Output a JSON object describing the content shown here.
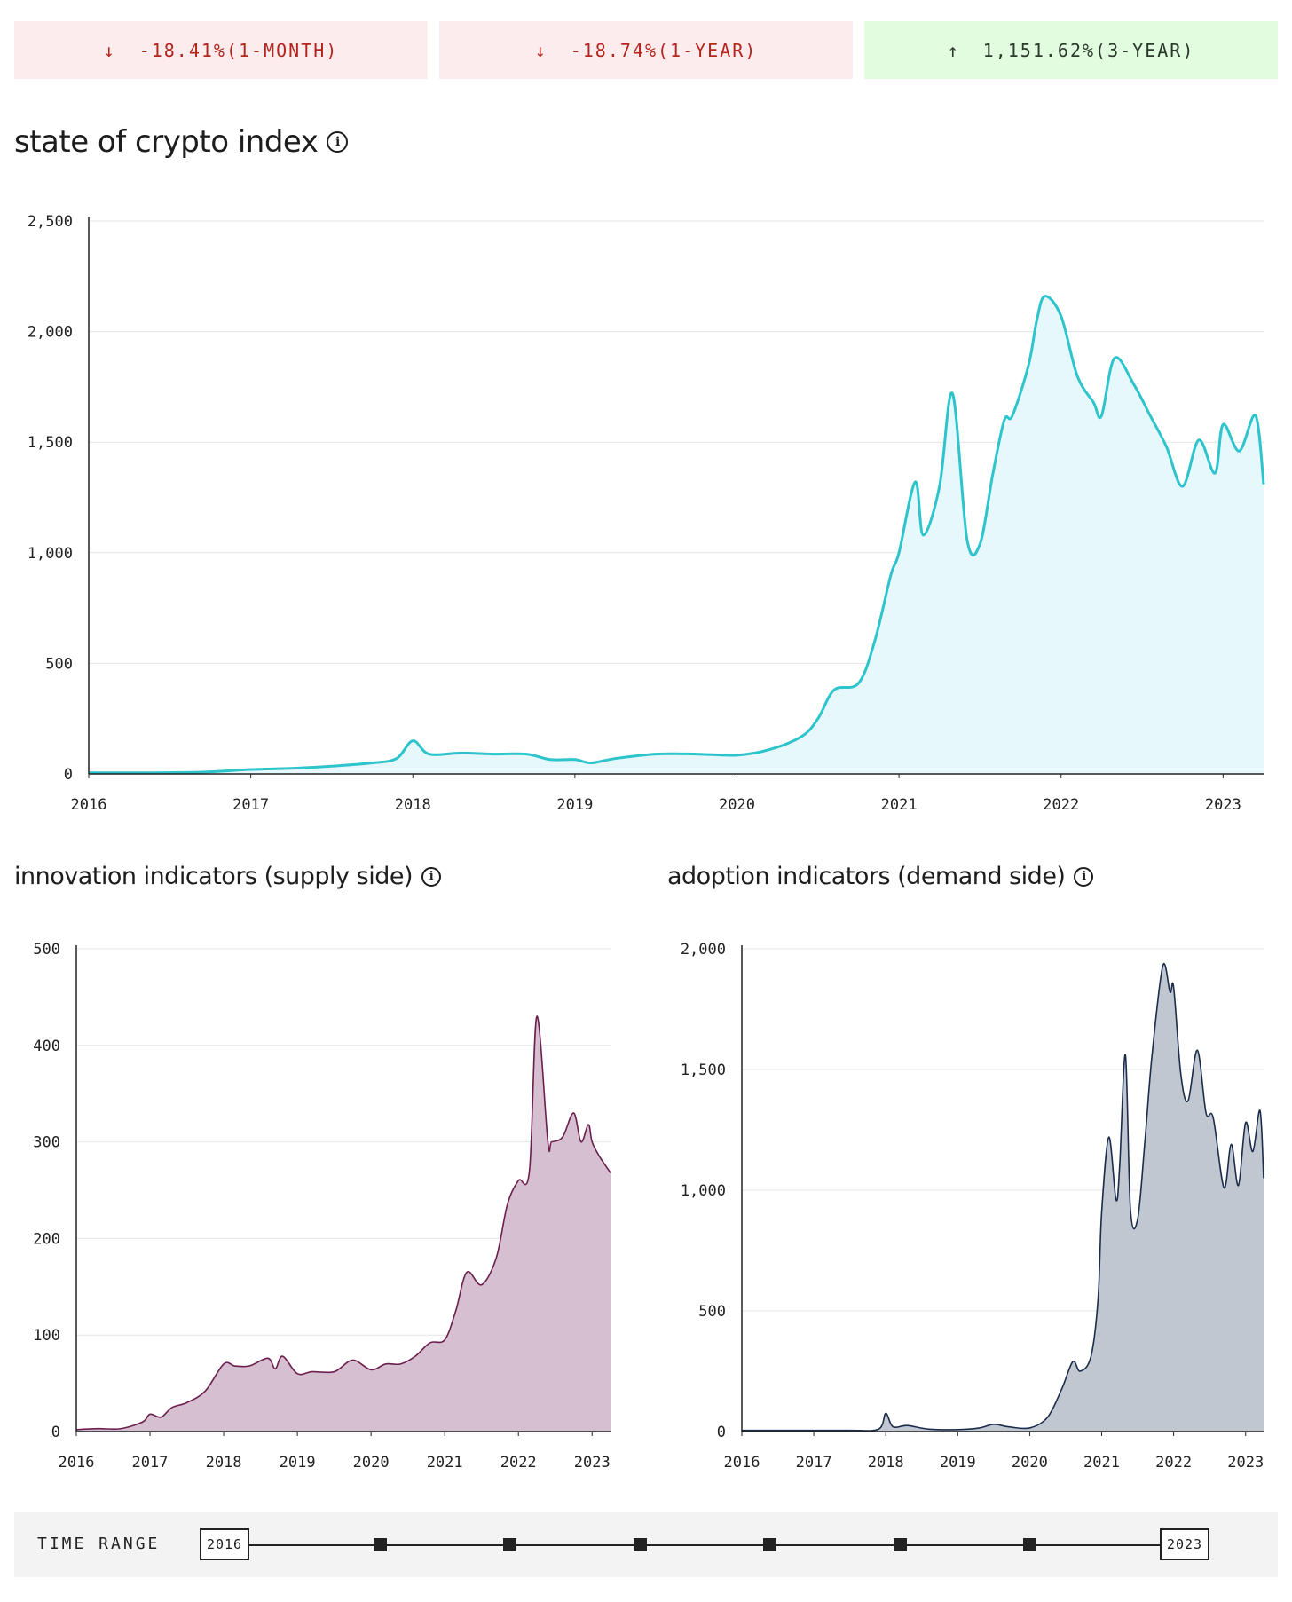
{
  "stats": [
    {
      "arrow": "↓",
      "text": "-18.41%(1-MONTH)",
      "tone": "negative"
    },
    {
      "arrow": "↓",
      "text": "-18.74%(1-YEAR)",
      "tone": "negative"
    },
    {
      "arrow": "↑",
      "text": "1,151.62%(3-YEAR)",
      "tone": "positive"
    }
  ],
  "sections": {
    "main_title": "state of crypto index",
    "supply_title": "innovation indicators (supply side)",
    "demand_title": "adoption indicators (demand side)"
  },
  "info_glyph": "i",
  "colors": {
    "index_line": "#2ec4cc",
    "index_fill": "#e6f8fb",
    "supply_line": "#6b1f4e",
    "supply_fill": "#d6bfd0",
    "demand_line": "#1c2c4c",
    "demand_fill": "#c1c7d1",
    "negative": "#b3261e",
    "positive": "#2b3a2b"
  },
  "time_range": {
    "label": "TIME RANGE",
    "start": "2016",
    "end": "2023",
    "steps": 6
  },
  "chart_data": [
    {
      "type": "area",
      "title": "state of crypto index",
      "xlim": [
        2016,
        2023.25
      ],
      "ylim": [
        0,
        2500
      ],
      "x_ticks": [
        "2016",
        "2017",
        "2018",
        "2019",
        "2020",
        "2021",
        "2022",
        "2023"
      ],
      "y_ticks": [
        "0",
        "500",
        "1,000",
        "1,500",
        "2,000",
        "2,500"
      ],
      "grid": true,
      "x": [
        2016.0,
        2016.3,
        2016.7,
        2017.0,
        2017.25,
        2017.5,
        2017.75,
        2017.9,
        2018.0,
        2018.1,
        2018.3,
        2018.5,
        2018.7,
        2018.85,
        2019.0,
        2019.1,
        2019.25,
        2019.5,
        2019.75,
        2020.0,
        2020.2,
        2020.4,
        2020.5,
        2020.6,
        2020.75,
        2020.85,
        2020.95,
        2021.0,
        2021.1,
        2021.15,
        2021.25,
        2021.33,
        2021.42,
        2021.5,
        2021.58,
        2021.65,
        2021.7,
        2021.8,
        2021.85,
        2021.9,
        2022.0,
        2022.1,
        2022.2,
        2022.25,
        2022.33,
        2022.45,
        2022.55,
        2022.65,
        2022.75,
        2022.85,
        2022.95,
        2023.0,
        2023.1,
        2023.2,
        2023.25
      ],
      "y": [
        5,
        5,
        8,
        20,
        25,
        35,
        50,
        70,
        150,
        90,
        95,
        90,
        90,
        65,
        65,
        50,
        70,
        90,
        90,
        85,
        110,
        170,
        250,
        380,
        410,
        600,
        900,
        1000,
        1320,
        1080,
        1300,
        1720,
        1060,
        1040,
        1360,
        1600,
        1620,
        1850,
        2050,
        2160,
        2070,
        1800,
        1680,
        1620,
        1880,
        1760,
        1620,
        1480,
        1300,
        1510,
        1360,
        1580,
        1460,
        1620,
        1310
      ]
    },
    {
      "type": "area",
      "title": "innovation indicators (supply side)",
      "xlim": [
        2016,
        2023.25
      ],
      "ylim": [
        0,
        500
      ],
      "x_ticks": [
        "2016",
        "2017",
        "2018",
        "2019",
        "2020",
        "2021",
        "2022",
        "2023"
      ],
      "y_ticks": [
        "0",
        "100",
        "200",
        "300",
        "400",
        "500"
      ],
      "grid": true,
      "x": [
        2016.0,
        2016.3,
        2016.6,
        2016.9,
        2017.0,
        2017.15,
        2017.3,
        2017.5,
        2017.75,
        2018.0,
        2018.15,
        2018.35,
        2018.6,
        2018.7,
        2018.8,
        2019.0,
        2019.2,
        2019.5,
        2019.75,
        2020.0,
        2020.2,
        2020.4,
        2020.6,
        2020.8,
        2021.0,
        2021.15,
        2021.3,
        2021.5,
        2021.7,
        2021.85,
        2022.0,
        2022.15,
        2022.25,
        2022.4,
        2022.45,
        2022.6,
        2022.75,
        2022.85,
        2022.95,
        2023.0,
        2023.1,
        2023.25
      ],
      "y": [
        2,
        3,
        3,
        10,
        18,
        15,
        25,
        30,
        42,
        70,
        68,
        68,
        76,
        65,
        78,
        60,
        62,
        62,
        74,
        64,
        70,
        70,
        78,
        92,
        95,
        125,
        165,
        152,
        180,
        235,
        260,
        270,
        430,
        300,
        300,
        305,
        330,
        300,
        318,
        300,
        285,
        268
      ]
    },
    {
      "type": "area",
      "title": "adoption indicators (demand side)",
      "xlim": [
        2016,
        2023.25
      ],
      "ylim": [
        0,
        2000
      ],
      "x_ticks": [
        "2016",
        "2017",
        "2018",
        "2019",
        "2020",
        "2021",
        "2022",
        "2023"
      ],
      "y_ticks": [
        "0",
        "500",
        "1,000",
        "1,500",
        "2,000"
      ],
      "grid": true,
      "x": [
        2016.0,
        2016.5,
        2017.0,
        2017.5,
        2017.9,
        2018.0,
        2018.1,
        2018.3,
        2018.6,
        2019.0,
        2019.3,
        2019.5,
        2019.7,
        2020.0,
        2020.25,
        2020.45,
        2020.6,
        2020.7,
        2020.85,
        2020.95,
        2021.0,
        2021.1,
        2021.2,
        2021.25,
        2021.33,
        2021.4,
        2021.5,
        2021.6,
        2021.7,
        2021.85,
        2021.95,
        2022.0,
        2022.1,
        2022.2,
        2022.33,
        2022.45,
        2022.55,
        2022.7,
        2022.8,
        2022.9,
        2023.0,
        2023.1,
        2023.2,
        2023.25
      ],
      "y": [
        5,
        5,
        5,
        5,
        10,
        75,
        20,
        25,
        10,
        8,
        15,
        30,
        20,
        15,
        60,
        180,
        290,
        250,
        310,
        550,
        910,
        1220,
        960,
        1100,
        1560,
        920,
        880,
        1200,
        1560,
        1930,
        1820,
        1840,
        1480,
        1370,
        1580,
        1320,
        1300,
        1010,
        1190,
        1020,
        1280,
        1160,
        1330,
        1050
      ]
    }
  ]
}
